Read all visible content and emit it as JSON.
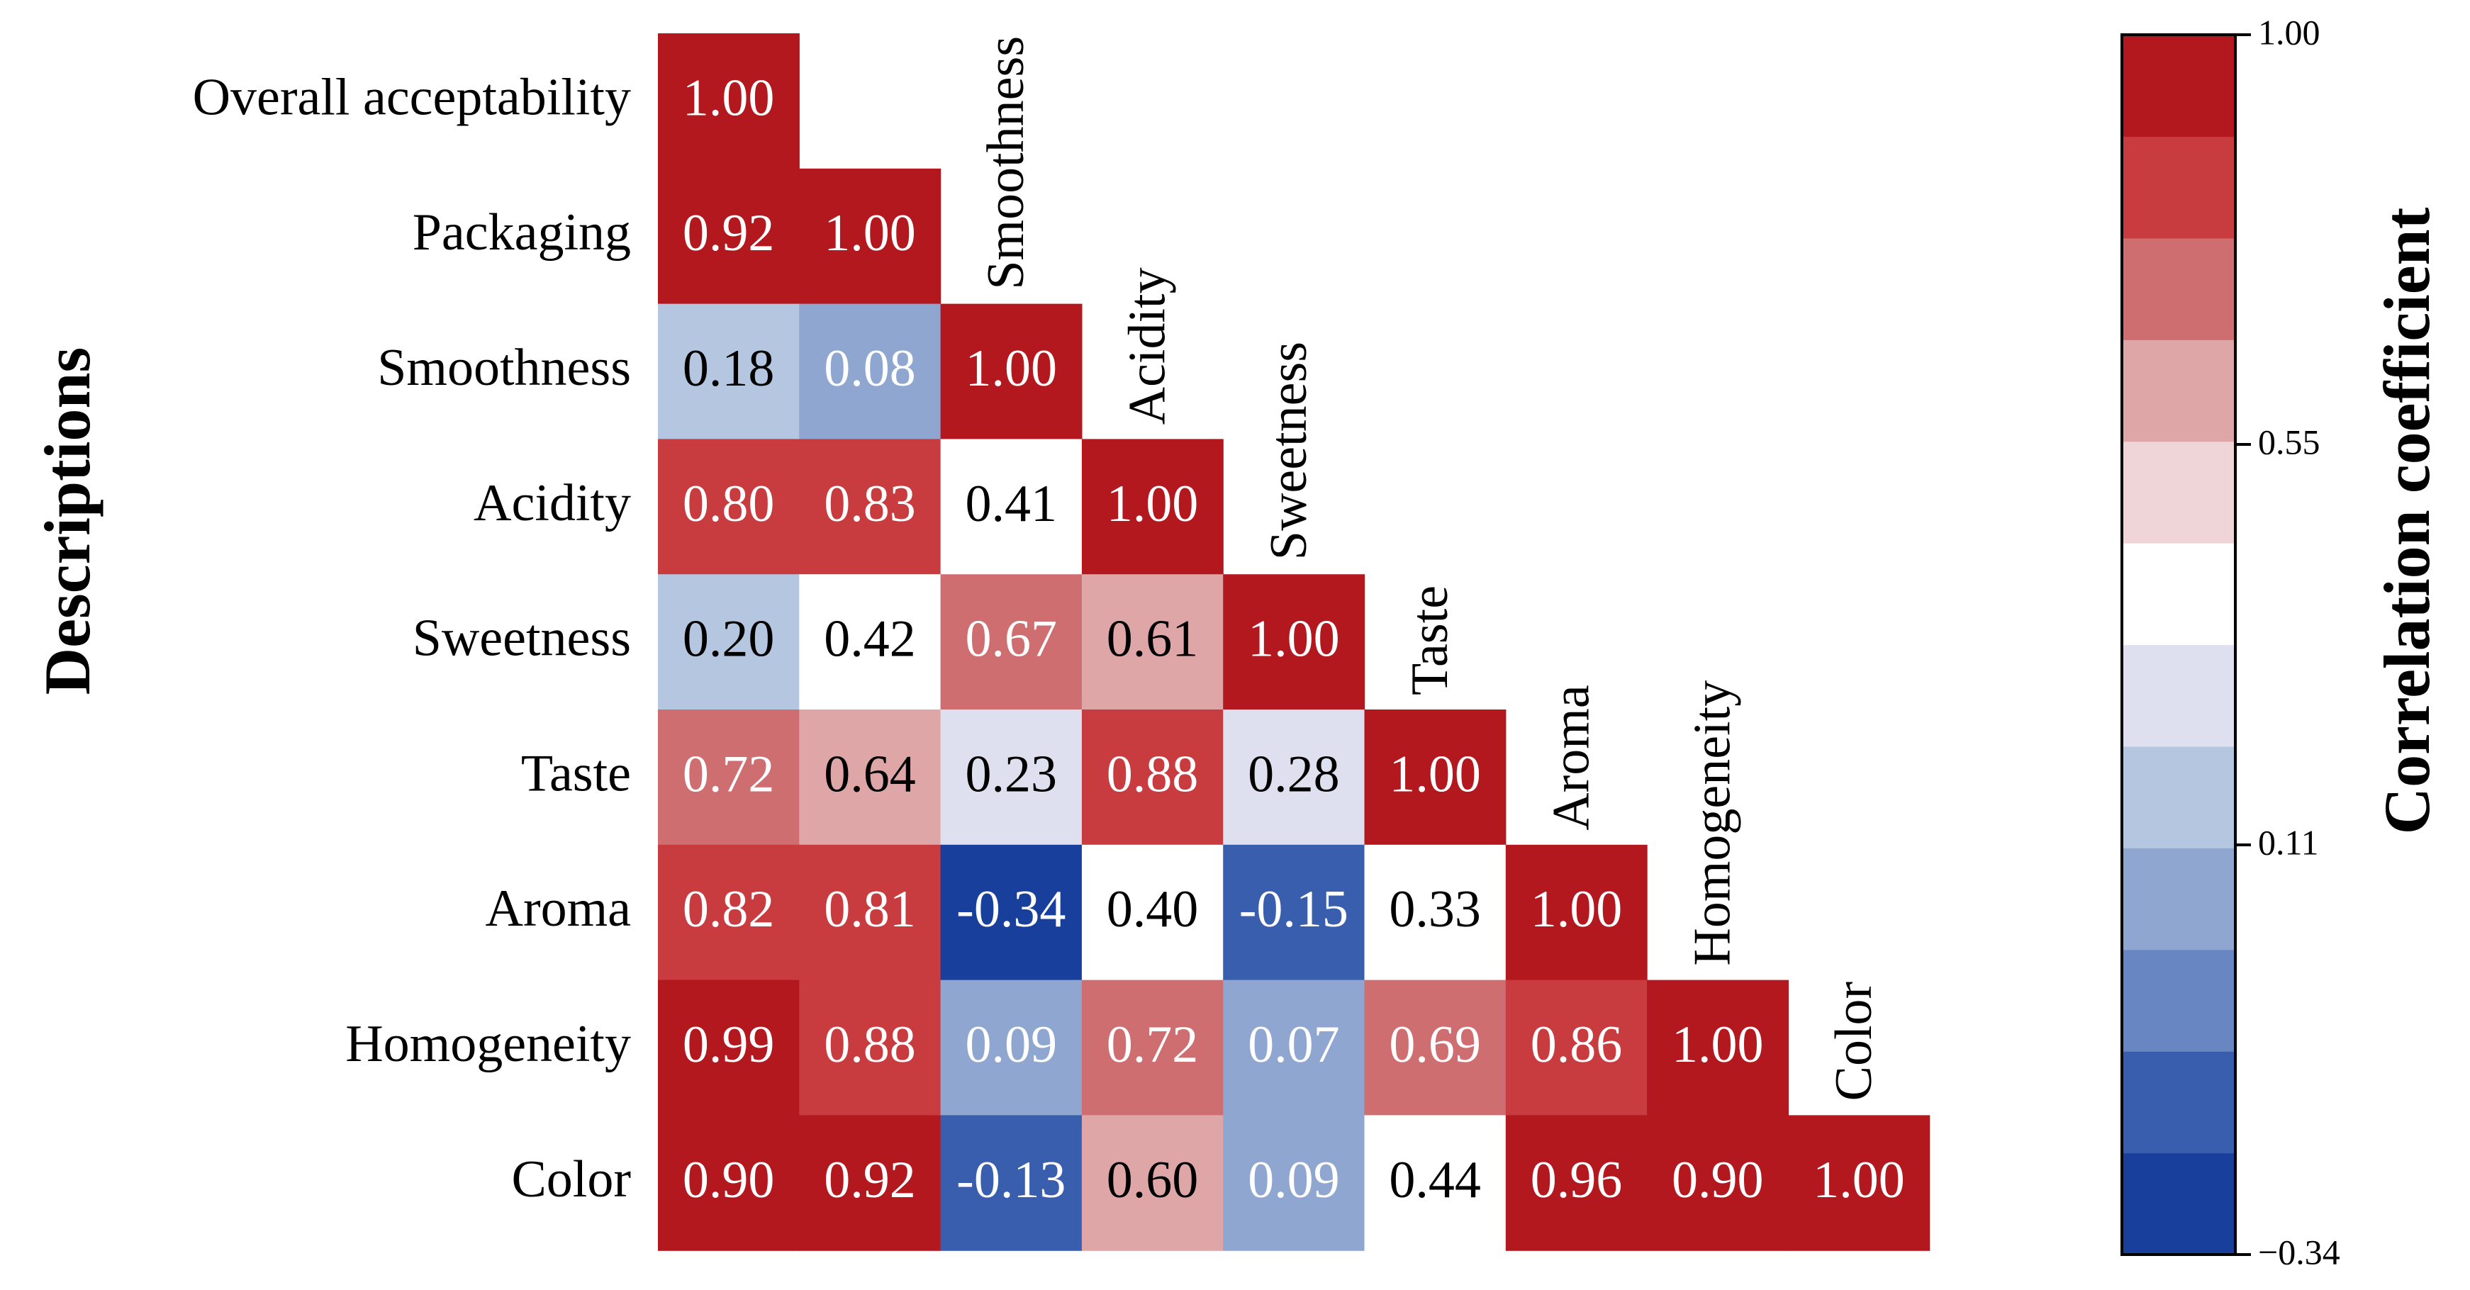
{
  "colors": {
    "scale": [
      "#173f9b",
      "#3a5eae",
      "#6886c2",
      "#8ea6d0",
      "#b4c6e0",
      "#dfe0ef",
      "#ffffff",
      "#efd5d8",
      "#dfa6a8",
      "#cf6e70",
      "#c83c40",
      "#b2181e"
    ],
    "text_dark": "#000000",
    "text_light": "#ffffff"
  },
  "chart_data": {
    "type": "heatmap",
    "layout": "lower-triangle correlation matrix",
    "ylabel": "Descriptions",
    "variables": [
      "Overall acceptability",
      "Packaging",
      "Smoothness",
      "Acidity",
      "Sweetness",
      "Taste",
      "Aroma",
      "Homogeneity",
      "Color"
    ],
    "matrix": [
      [
        1.0
      ],
      [
        0.92,
        1.0
      ],
      [
        0.18,
        0.08,
        1.0
      ],
      [
        0.8,
        0.83,
        0.41,
        1.0
      ],
      [
        0.2,
        0.42,
        0.67,
        0.61,
        1.0
      ],
      [
        0.72,
        0.64,
        0.23,
        0.88,
        0.28,
        1.0
      ],
      [
        0.82,
        0.81,
        -0.34,
        0.4,
        -0.15,
        0.33,
        1.0
      ],
      [
        0.99,
        0.88,
        0.09,
        0.72,
        0.07,
        0.69,
        0.86,
        1.0
      ],
      [
        0.9,
        0.92,
        -0.13,
        0.6,
        0.09,
        0.44,
        0.96,
        0.9,
        1.0
      ]
    ],
    "colorbar": {
      "label": "Correlation coefficient",
      "range": [
        -0.34,
        1.0
      ],
      "tick_values": [
        1.0,
        0.55,
        0.11,
        -0.34
      ],
      "tick_labels": [
        "1.00",
        "0.55",
        "0.11",
        "−0.34"
      ],
      "levels": 12
    }
  }
}
